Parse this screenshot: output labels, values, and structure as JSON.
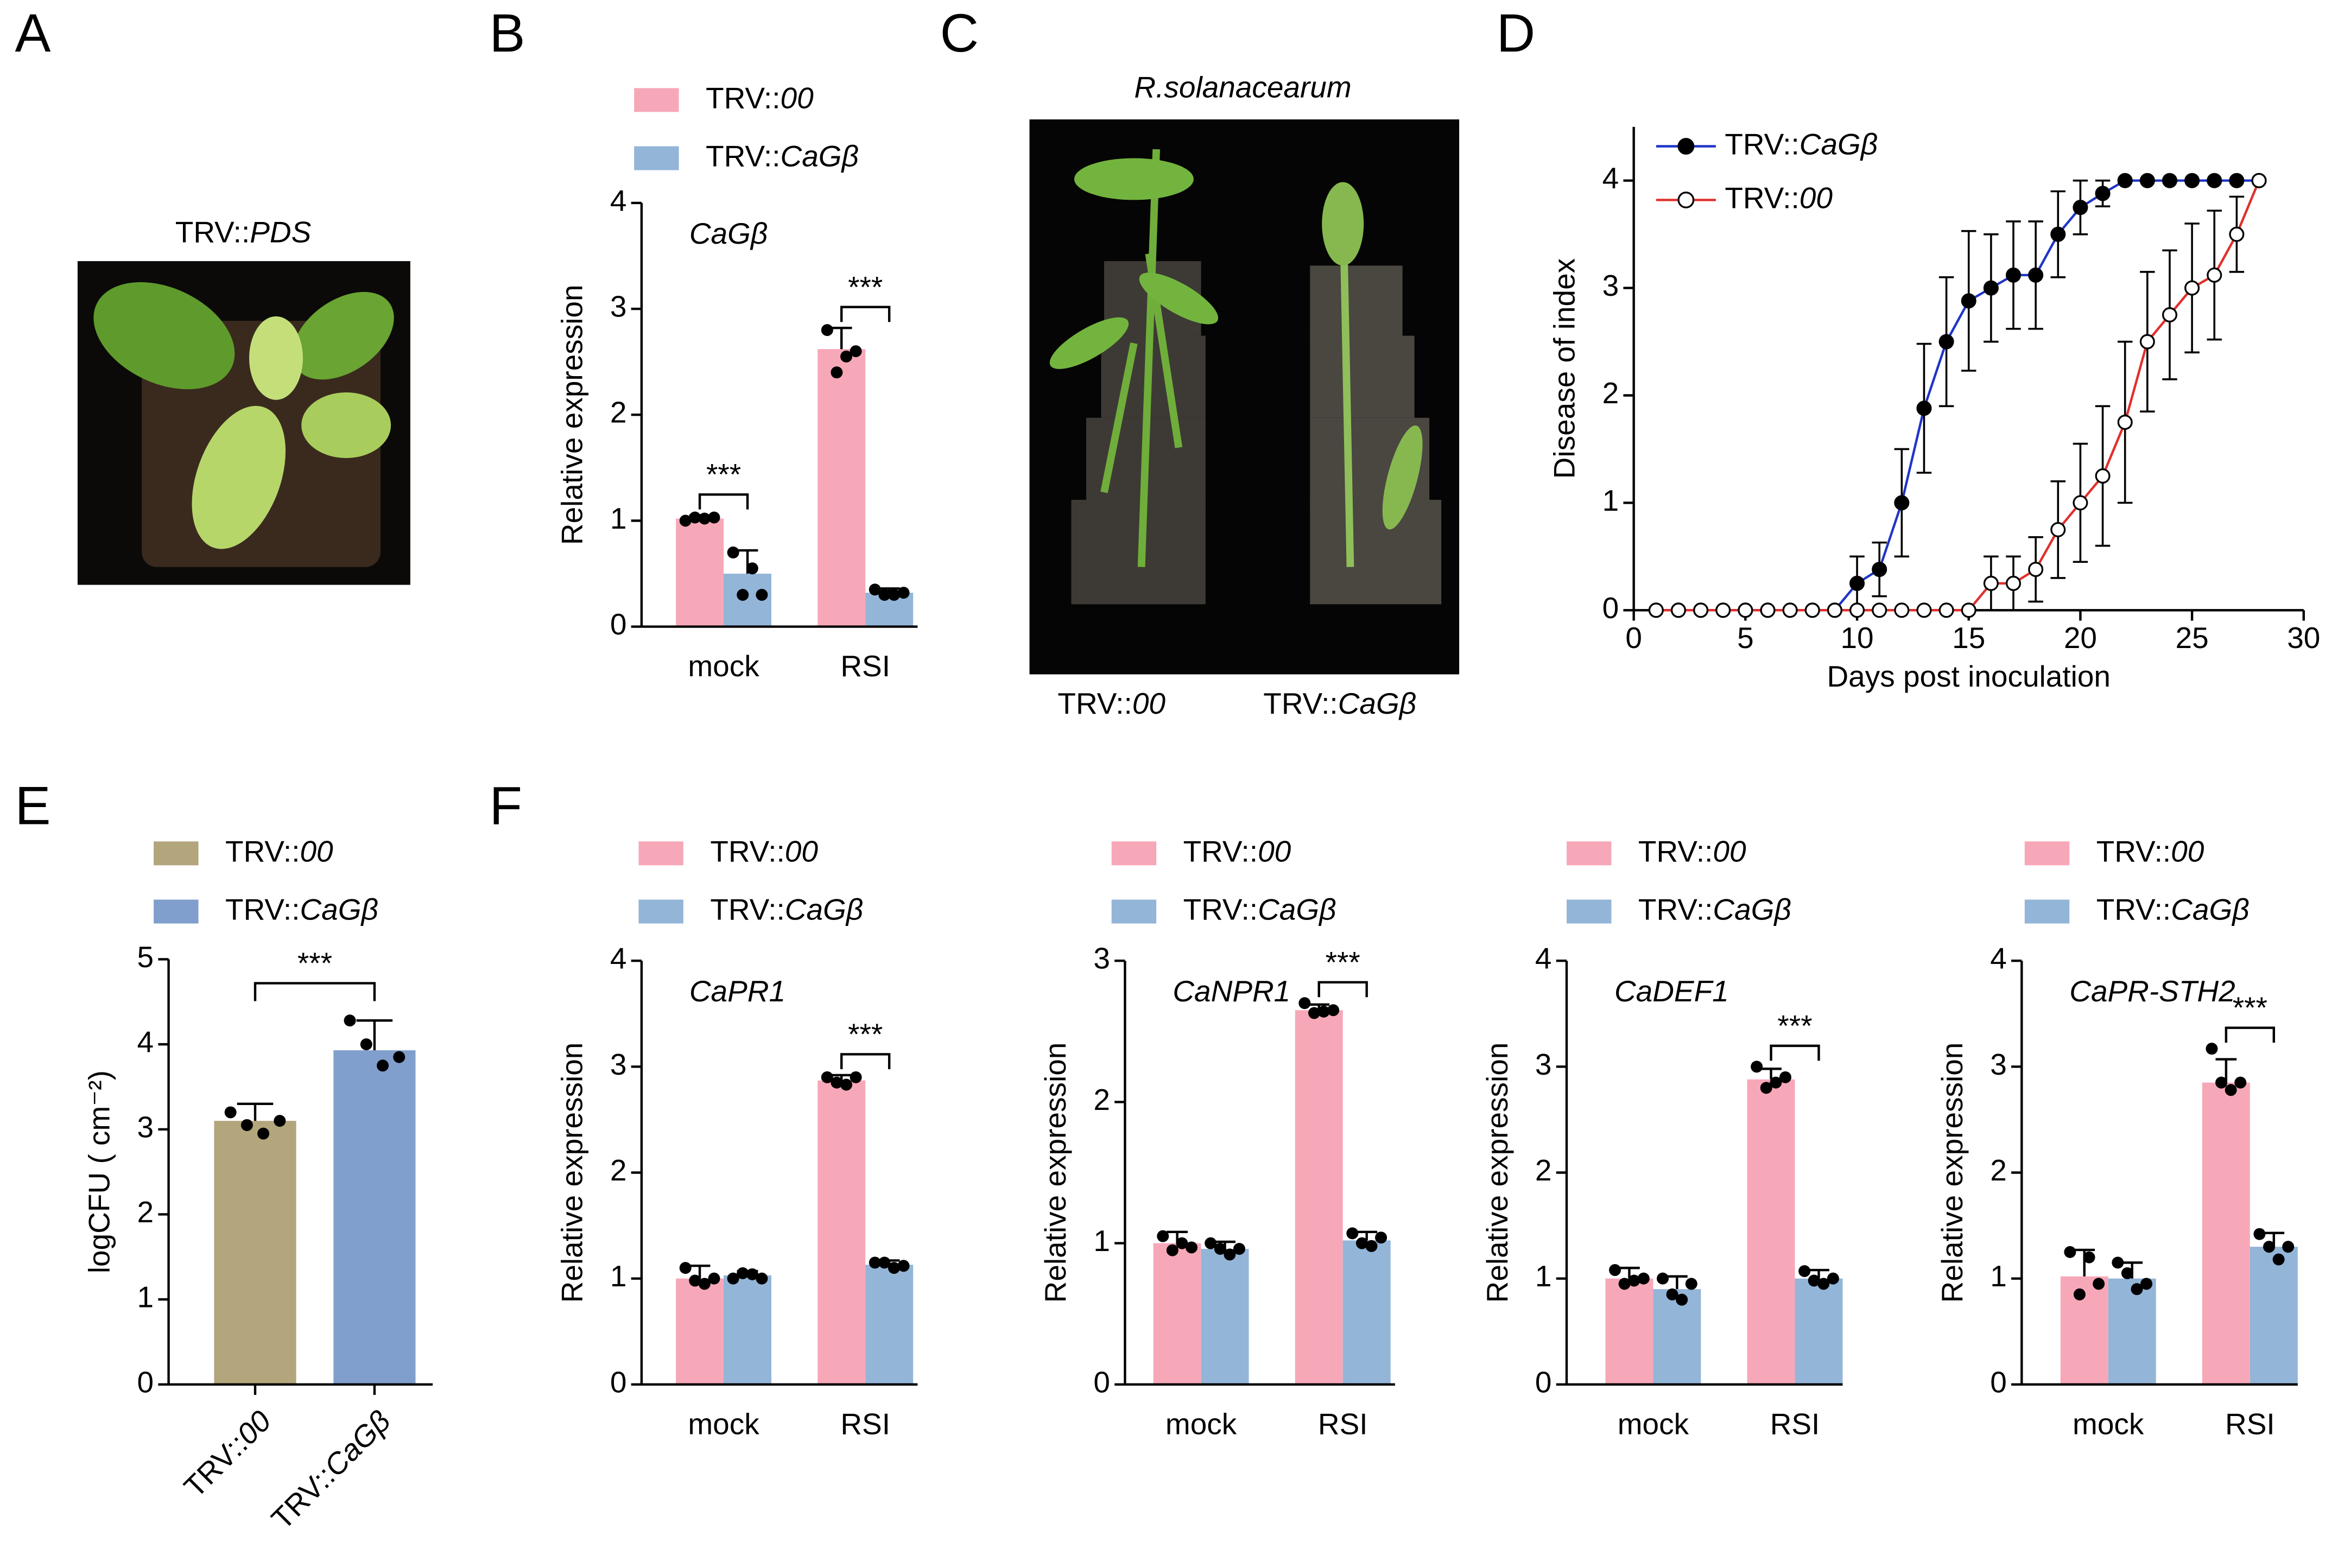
{
  "panel_labels": [
    "A",
    "B",
    "C",
    "D",
    "E",
    "F"
  ],
  "photos": [
    {
      "title": "TRV::PDS"
    },
    {
      "title": "R.solanacearum",
      "labels": [
        "TRV::00",
        "TRV::CaGβ"
      ]
    }
  ],
  "chart_data": [
    {
      "type": "bar",
      "title": "CaGβ",
      "y_label": "Relative expression",
      "categories": [
        "mock",
        "RSI"
      ],
      "ylim": [
        0,
        4
      ],
      "yticks": [
        0,
        1,
        2,
        3,
        4
      ],
      "series": [
        {
          "name": "TRV::00",
          "color": "#f7a8b8",
          "values": [
            1.02,
            2.62
          ],
          "errors": [
            0.03,
            0.2
          ],
          "points": [
            [
              1.0,
              1.03,
              1.02,
              1.03
            ],
            [
              2.8,
              2.4,
              2.55,
              2.6
            ]
          ]
        },
        {
          "name": "TRV::CaGβ",
          "color": "#93b5d8",
          "values": [
            0.5,
            0.32
          ],
          "errors": [
            0.22,
            0.04
          ],
          "points": [
            [
              0.7,
              0.3,
              0.55,
              0.3
            ],
            [
              0.35,
              0.3,
              0.3,
              0.32
            ]
          ]
        }
      ],
      "significance": [
        "***",
        "***"
      ]
    },
    {
      "type": "line",
      "x_label": "Days post inoculation",
      "y_label": "Disease of index",
      "xlim": [
        0,
        30
      ],
      "xticks": [
        0,
        5,
        10,
        15,
        20,
        25,
        30
      ],
      "ylim": [
        0,
        4.5
      ],
      "yticks": [
        0,
        1,
        2,
        3,
        4
      ],
      "x": [
        1,
        2,
        3,
        4,
        5,
        6,
        7,
        8,
        9,
        10,
        11,
        12,
        13,
        14,
        15,
        16,
        17,
        18,
        19,
        20,
        21,
        22,
        23,
        24,
        25,
        26,
        27,
        28
      ],
      "series": [
        {
          "name": "TRV::CaGβ",
          "color": "#1f35c8",
          "marker_fill": "#000000",
          "values": [
            0,
            0,
            0,
            0,
            0,
            0,
            0,
            0,
            0,
            0.25,
            0.38,
            1.0,
            1.88,
            2.5,
            2.88,
            3.0,
            3.12,
            3.12,
            3.5,
            3.75,
            3.88,
            4,
            4,
            4,
            4,
            4,
            4,
            4
          ],
          "errors": [
            0,
            0,
            0,
            0,
            0,
            0,
            0,
            0,
            0,
            0.25,
            0.25,
            0.5,
            0.6,
            0.6,
            0.65,
            0.5,
            0.5,
            0.5,
            0.4,
            0.25,
            0.12,
            0,
            0,
            0,
            0,
            0,
            0,
            0
          ]
        },
        {
          "name": "TRV::00",
          "color": "#e0302c",
          "marker_fill": "#ffffff",
          "values": [
            0,
            0,
            0,
            0,
            0,
            0,
            0,
            0,
            0,
            0,
            0,
            0,
            0,
            0,
            0,
            0.25,
            0.25,
            0.38,
            0.75,
            1.0,
            1.25,
            1.75,
            2.5,
            2.75,
            3.0,
            3.12,
            3.5,
            4
          ],
          "errors": [
            0,
            0,
            0,
            0,
            0,
            0,
            0,
            0,
            0,
            0,
            0,
            0,
            0,
            0,
            0,
            0.25,
            0.25,
            0.3,
            0.45,
            0.55,
            0.65,
            0.75,
            0.65,
            0.6,
            0.6,
            0.6,
            0.35,
            0
          ]
        }
      ]
    },
    {
      "type": "bar",
      "y_label": "logCFU ( cm⁻²)",
      "categories": [
        "TRV::00",
        "TRV::CaGβ"
      ],
      "colors": [
        "#b3a57c",
        "#809fcc"
      ],
      "values": [
        3.1,
        3.93
      ],
      "errors": [
        0.2,
        0.35
      ],
      "points": [
        [
          3.2,
          3.05,
          2.95,
          3.1
        ],
        [
          4.28,
          4.0,
          3.75,
          3.85
        ]
      ],
      "ylim": [
        0,
        5
      ],
      "yticks": [
        0,
        1,
        2,
        3,
        4,
        5
      ],
      "significance": "***"
    },
    {
      "type": "bar",
      "title": "CaPR1",
      "y_label": "Relative expression",
      "categories": [
        "mock",
        "RSI"
      ],
      "ylim": [
        0,
        4
      ],
      "yticks": [
        0,
        1,
        2,
        3,
        4
      ],
      "series": [
        {
          "name": "TRV::00",
          "color": "#f7a8b8",
          "values": [
            1.0,
            2.87
          ],
          "errors": [
            0.12,
            0.05
          ],
          "points": [
            [
              1.1,
              0.98,
              0.95,
              1.0
            ],
            [
              2.9,
              2.85,
              2.83,
              2.9
            ]
          ]
        },
        {
          "name": "TRV::CaGβ",
          "color": "#93b5d8",
          "values": [
            1.03,
            1.13
          ],
          "errors": [
            0.04,
            0.04
          ],
          "points": [
            [
              1.0,
              1.05,
              1.04,
              1.0
            ],
            [
              1.15,
              1.15,
              1.1,
              1.12
            ]
          ]
        }
      ],
      "significance": [
        null,
        "***"
      ]
    },
    {
      "type": "bar",
      "title": "CaNPR1",
      "y_label": "Relative expression",
      "categories": [
        "mock",
        "RSI"
      ],
      "ylim": [
        0,
        3
      ],
      "yticks": [
        0,
        1,
        2,
        3
      ],
      "series": [
        {
          "name": "TRV::00",
          "color": "#f7a8b8",
          "values": [
            1.0,
            2.65
          ],
          "errors": [
            0.08,
            0.04
          ],
          "points": [
            [
              1.05,
              0.95,
              1.0,
              0.97
            ],
            [
              2.7,
              2.63,
              2.64,
              2.65
            ]
          ]
        },
        {
          "name": "TRV::CaGβ",
          "color": "#93b5d8",
          "values": [
            0.96,
            1.02
          ],
          "errors": [
            0.05,
            0.06
          ],
          "points": [
            [
              1.0,
              0.96,
              0.92,
              0.96
            ],
            [
              1.07,
              1.0,
              0.98,
              1.04
            ]
          ]
        }
      ],
      "significance": [
        null,
        "***"
      ]
    },
    {
      "type": "bar",
      "title": "CaDEF1",
      "y_label": "Relative expression",
      "categories": [
        "mock",
        "RSI"
      ],
      "ylim": [
        0,
        4
      ],
      "yticks": [
        0,
        1,
        2,
        3,
        4
      ],
      "series": [
        {
          "name": "TRV::00",
          "color": "#f7a8b8",
          "values": [
            1.0,
            2.88
          ],
          "errors": [
            0.1,
            0.1
          ],
          "points": [
            [
              1.08,
              0.95,
              0.98,
              1.0
            ],
            [
              3.0,
              2.8,
              2.85,
              2.9
            ]
          ]
        },
        {
          "name": "TRV::CaGβ",
          "color": "#93b5d8",
          "values": [
            0.9,
            1.0
          ],
          "errors": [
            0.12,
            0.08
          ],
          "points": [
            [
              1.0,
              0.85,
              0.8,
              0.95
            ],
            [
              1.07,
              0.98,
              0.95,
              1.0
            ]
          ]
        }
      ],
      "significance": [
        null,
        "***"
      ]
    },
    {
      "type": "bar",
      "title": "CaPR-STH2",
      "y_label": "Relative expression",
      "categories": [
        "mock",
        "RSI"
      ],
      "ylim": [
        0,
        4
      ],
      "yticks": [
        0,
        1,
        2,
        3,
        4
      ],
      "series": [
        {
          "name": "TRV::00",
          "color": "#f7a8b8",
          "values": [
            1.02,
            2.85
          ],
          "errors": [
            0.25,
            0.22
          ],
          "points": [
            [
              1.25,
              0.85,
              1.2,
              0.95
            ],
            [
              3.17,
              2.85,
              2.78,
              2.85
            ]
          ]
        },
        {
          "name": "TRV::CaGβ",
          "color": "#93b5d8",
          "values": [
            1.0,
            1.3
          ],
          "errors": [
            0.15,
            0.13
          ],
          "points": [
            [
              1.15,
              1.05,
              0.9,
              0.95
            ],
            [
              1.42,
              1.3,
              1.18,
              1.3
            ]
          ]
        }
      ],
      "significance": [
        null,
        "***"
      ]
    }
  ]
}
